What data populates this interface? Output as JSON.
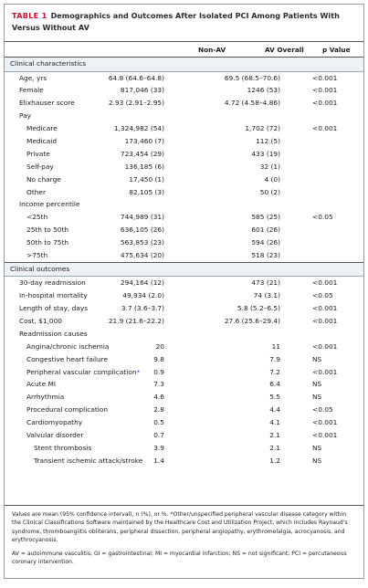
{
  "table": {
    "tag": "TABLE 1",
    "title": "Demographics and Outcomes After Isolated PCI Among Patients With Versus Without AV",
    "headers": {
      "col1": "Non-AV",
      "col2": "AV Overall",
      "col3": "p Value"
    }
  },
  "rows": [
    {
      "type": "section",
      "label": "Clinical characteristics"
    },
    {
      "label": "Age, yrs",
      "indent": 0,
      "c1": "64.8 (64.6–64.8)",
      "c2": "69.5 (68.5–70.6)",
      "c3": "<0.001"
    },
    {
      "label": "Female",
      "indent": 0,
      "c1": "817,046 (33)",
      "c2": "1246 (53)",
      "c3": "<0.001"
    },
    {
      "label": "Elixhauser score",
      "indent": 0,
      "c1": "2.93 (2.91–2.95)",
      "c2": "4.72 (4.58–4.86)",
      "c3": "<0.001"
    },
    {
      "label": "Pay",
      "indent": 0,
      "c1": "",
      "c2": "",
      "c3": ""
    },
    {
      "label": "Medicare",
      "indent": 1,
      "c1": "1,324,982 (54)",
      "c2": "1,702 (72)",
      "c3": "<0.001"
    },
    {
      "label": "Medicaid",
      "indent": 1,
      "c1": "173,460 (7)",
      "c2": "112 (5)",
      "c3": ""
    },
    {
      "label": "Private",
      "indent": 1,
      "c1": "723,454 (29)",
      "c2": "433 (19)",
      "c3": ""
    },
    {
      "label": "Self-pay",
      "indent": 1,
      "c1": "136,185 (6)",
      "c2": "32 (1)",
      "c3": ""
    },
    {
      "label": "No charge",
      "indent": 1,
      "c1": "17,450 (1)",
      "c2": "4 (0)",
      "c3": ""
    },
    {
      "label": "Other",
      "indent": 1,
      "c1": "82,105 (3)",
      "c2": "50 (2)",
      "c3": ""
    },
    {
      "label": "Income percentile",
      "indent": 0,
      "c1": "",
      "c2": "",
      "c3": ""
    },
    {
      "label": "<25th",
      "indent": 1,
      "c1": "744,989 (31)",
      "c2": "585 (25)",
      "c3": "<0.05"
    },
    {
      "label": "25th to 50th",
      "indent": 1,
      "c1": "636,105 (26)",
      "c2": "601 (26)",
      "c3": ""
    },
    {
      "label": "50th to 75th",
      "indent": 1,
      "c1": "563,853 (23)",
      "c2": "594 (26)",
      "c3": ""
    },
    {
      "label": ">75th",
      "indent": 1,
      "c1": "475,634 (20)",
      "c2": "518 (23)",
      "c3": ""
    },
    {
      "type": "section",
      "label": "Clinical outcomes"
    },
    {
      "label": "30-day readmission",
      "indent": 0,
      "c1": "294,164 (12)",
      "c2": "473 (21)",
      "c3": "<0.001"
    },
    {
      "label": "In-hospital mortality",
      "indent": 0,
      "c1": "49,934 (2.0)",
      "c2": "74 (3.1)",
      "c3": "<0.05"
    },
    {
      "label": "Length of stay, days",
      "indent": 0,
      "c1": "3.7 (3.6–3.7)",
      "c2": "5.8 (5.2–6.5)",
      "c3": "<0.001"
    },
    {
      "label": "Cost, $1,000",
      "indent": 0,
      "c1": "21.9 (21.6–22.2)",
      "c2": "27.6 (25.6–29.4)",
      "c3": "<0.001"
    },
    {
      "label": "Readmission causes",
      "indent": 0,
      "c1": "",
      "c2": "",
      "c3": ""
    },
    {
      "label": "Angina/chronic ischemia",
      "indent": 1,
      "c1": "20",
      "c2": "11",
      "c3": "<0.001"
    },
    {
      "label": "Congestive heart failure",
      "indent": 1,
      "c1": "9.8",
      "c2": "7.9",
      "c3": "NS"
    },
    {
      "label": "Peripheral vascular complication",
      "indent": 1,
      "asterisk": "*",
      "c1": "0.9",
      "c2": "7.2",
      "c3": "<0.001"
    },
    {
      "label": "Acute MI",
      "indent": 1,
      "c1": "7.3",
      "c2": "6.4",
      "c3": "NS"
    },
    {
      "label": "Arrhythmia",
      "indent": 1,
      "c1": "4.6",
      "c2": "5.5",
      "c3": "NS"
    },
    {
      "label": "Procedural complication",
      "indent": 1,
      "c1": "2.8",
      "c2": "4.4",
      "c3": "<0.05"
    },
    {
      "label": "Cardiomyopathy",
      "indent": 1,
      "c1": "0.5",
      "c2": "4.1",
      "c3": "<0.001"
    },
    {
      "label": "Valvular disorder",
      "indent": 1,
      "c1": "0.7",
      "c2": "2.1",
      "c3": "<0.001"
    },
    {
      "label": "Stent thrombosis",
      "indent": 2,
      "c1": "3.9",
      "c2": "2.1",
      "c3": "NS"
    },
    {
      "label": "Transient ischemic attack/stroke",
      "indent": 2,
      "c1": "1.4",
      "c2": "1.2",
      "c3": "NS"
    }
  ],
  "footer": {
    "note1": "Values are mean (95% confidence interval), n (%), or %. *Other/unspecified peripheral vascular disease category within the Clinical Classifications Software maintained by the Healthcare Cost and Utilization Project, which includes Raynaud's syndrome, thromboangiitis obliterans, peripheral dissection, peripheral angiopathy, erythromelalgia, acrocyanosis, and erythrocyanosis.",
    "note2": "AV = autoimmune vasculitis; GI = gastrointestinal; MI = myocardial infarction; NS = not significant; PCI = percutaneous coronary intervention."
  }
}
